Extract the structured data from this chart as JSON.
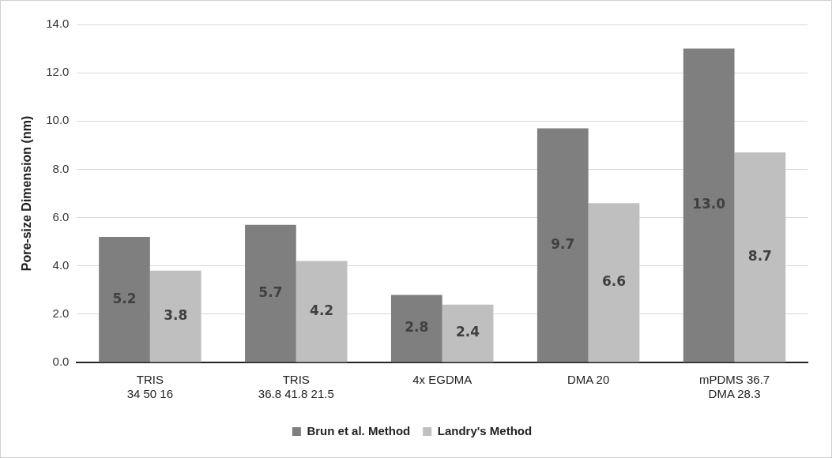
{
  "chart_data": {
    "type": "bar",
    "ylabel": "Pore-size Dimension (nm)",
    "categories": [
      "TRIS\n34 50 16",
      "TRIS\n36.8 41.8 21.5",
      "4x EGDMA",
      "DMA 20",
      "mPDMS 36.7\nDMA 28.3"
    ],
    "series": [
      {
        "name": "Brun et al. Method",
        "color": "#7f7f7f",
        "values": [
          5.2,
          5.7,
          2.8,
          9.7,
          13.0
        ],
        "value_labels": [
          "5.2",
          "5.7",
          "2.8",
          "9.7",
          "13.0"
        ]
      },
      {
        "name": "Landry's Method",
        "color": "#bfbfbf",
        "values": [
          3.8,
          4.2,
          2.4,
          6.6,
          8.7
        ],
        "value_labels": [
          "3.8",
          "4.2",
          "2.4",
          "6.6",
          "8.7"
        ]
      }
    ],
    "ylim": [
      0,
      14
    ],
    "yticks": [
      {
        "value": 0,
        "label": "0.0"
      },
      {
        "value": 2,
        "label": "2.0"
      },
      {
        "value": 4,
        "label": "4.0"
      },
      {
        "value": 6,
        "label": "6.0"
      },
      {
        "value": 8,
        "label": "8.0"
      },
      {
        "value": 10,
        "label": "10.0"
      },
      {
        "value": 12,
        "label": "12.0"
      },
      {
        "value": 14,
        "label": "14.0"
      }
    ],
    "grid": "y",
    "legend": "bottom"
  }
}
